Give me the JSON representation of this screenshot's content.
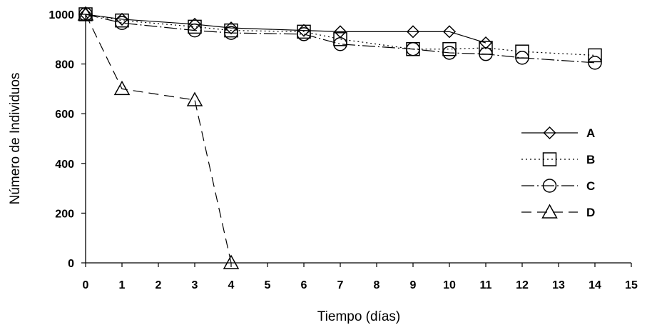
{
  "chart_data": {
    "type": "line",
    "xlabel": "Tiempo (días)",
    "ylabel": "Número de Individuos",
    "xlim": [
      0,
      15
    ],
    "ylim": [
      0,
      1000
    ],
    "x_ticks": [
      0,
      1,
      2,
      3,
      4,
      5,
      6,
      7,
      8,
      9,
      10,
      11,
      12,
      13,
      14,
      15
    ],
    "y_ticks": [
      0,
      200,
      400,
      600,
      800,
      1000
    ],
    "grid": false,
    "legend_position": "right",
    "series": [
      {
        "name": "A",
        "marker": "diamond",
        "line_style": "solid",
        "points": [
          [
            0,
            1000
          ],
          [
            1,
            980
          ],
          [
            3,
            960
          ],
          [
            4,
            945
          ],
          [
            6,
            935
          ],
          [
            7,
            930
          ],
          [
            9,
            930
          ],
          [
            10,
            930
          ],
          [
            11,
            885
          ]
        ]
      },
      {
        "name": "B",
        "marker": "square",
        "line_style": "dotted",
        "points": [
          [
            0,
            1000
          ],
          [
            1,
            975
          ],
          [
            3,
            950
          ],
          [
            4,
            935
          ],
          [
            6,
            930
          ],
          [
            7,
            900
          ],
          [
            9,
            860
          ],
          [
            10,
            860
          ],
          [
            11,
            865
          ],
          [
            12,
            850
          ],
          [
            14,
            835
          ]
        ]
      },
      {
        "name": "C",
        "marker": "circle",
        "line_style": "dash-dot",
        "points": [
          [
            0,
            1000
          ],
          [
            1,
            965
          ],
          [
            3,
            935
          ],
          [
            4,
            925
          ],
          [
            6,
            920
          ],
          [
            7,
            880
          ],
          [
            9,
            860
          ],
          [
            10,
            845
          ],
          [
            11,
            840
          ],
          [
            12,
            825
          ],
          [
            14,
            805
          ]
        ]
      },
      {
        "name": "D",
        "marker": "triangle",
        "line_style": "dashed",
        "points": [
          [
            0,
            1000
          ],
          [
            1,
            700
          ],
          [
            3,
            655
          ],
          [
            4,
            0
          ]
        ]
      }
    ]
  }
}
